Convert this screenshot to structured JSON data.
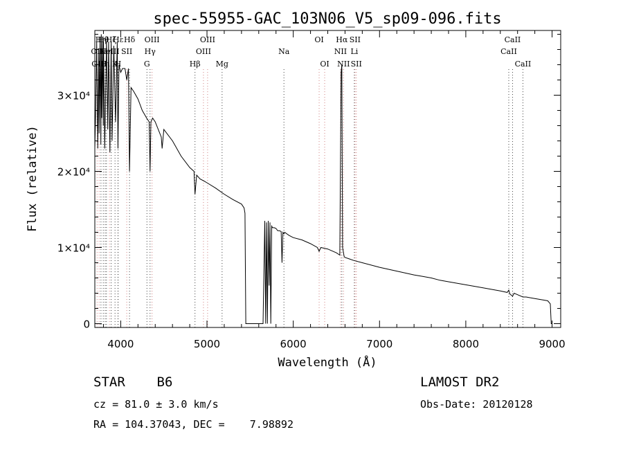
{
  "chart_data": {
    "type": "line",
    "title": "spec-55955-GAC_103N06_V5_sp09-096.fits",
    "xlabel": "Wavelength (Å)",
    "ylabel": "Flux (relative)",
    "xlim": [
      3700,
      9100
    ],
    "ylim": [
      -500,
      38500
    ],
    "x_ticks": [
      4000,
      5000,
      6000,
      7000,
      8000,
      9000
    ],
    "y_ticks": [
      {
        "value": 0,
        "label": "0"
      },
      {
        "value": 10000,
        "label": "1×10⁴"
      },
      {
        "value": 20000,
        "label": "2×10⁴"
      },
      {
        "value": 30000,
        "label": "3×10⁴"
      }
    ],
    "series": [
      {
        "x": [
          3700,
          3710,
          3722,
          3734,
          3746,
          3750,
          3760,
          3770,
          3775,
          3780,
          3790,
          3798,
          3800,
          3815,
          3835,
          3850,
          3860,
          3875,
          3889,
          3900,
          3920,
          3940,
          3960,
          3968,
          3980,
          3990,
          4000,
          4020,
          4050,
          4070,
          4090,
          4102,
          4120,
          4150,
          4200,
          4250,
          4300,
          4330,
          4340,
          4350,
          4370,
          4400,
          4470,
          4480,
          4500,
          4600,
          4700,
          4800,
          4850,
          4861,
          4880,
          4920,
          4970,
          5000,
          5100,
          5200,
          5300,
          5400,
          5430,
          5440,
          5450,
          5460,
          5650,
          5670,
          5680,
          5690,
          5700,
          5710,
          5720,
          5730,
          5740,
          5750,
          5760,
          5780,
          5800,
          5820,
          5840,
          5860,
          5870,
          5880,
          5892,
          5900,
          5950,
          6000,
          6100,
          6200,
          6280,
          6300,
          6320,
          6400,
          6500,
          6540,
          6555,
          6563,
          6572,
          6590,
          6600,
          6650,
          6700,
          6800,
          7000,
          7200,
          7400,
          7500,
          7600,
          7700,
          7800,
          8000,
          8200,
          8400,
          8480,
          8498,
          8510,
          8542,
          8560,
          8600,
          8662,
          8700,
          8800,
          8900,
          8950,
          8980,
          8990,
          9000
        ],
        "y": [
          23000,
          28000,
          37000,
          23000,
          36000,
          25000,
          37000,
          23500,
          38000,
          27000,
          37000,
          26000,
          37000,
          23000,
          37000,
          25500,
          37000,
          22500,
          37000,
          24000,
          36500,
          26500,
          37000,
          23000,
          34000,
          33500,
          33000,
          33500,
          33500,
          32000,
          33500,
          20000,
          31000,
          30500,
          29500,
          28000,
          27000,
          26500,
          20000,
          26500,
          27000,
          26500,
          24500,
          23000,
          25500,
          24000,
          22000,
          20500,
          20000,
          17000,
          19500,
          19000,
          18700,
          18500,
          17800,
          17000,
          16300,
          15700,
          15200,
          14500,
          0,
          0,
          0,
          13500,
          0,
          13300,
          0,
          13500,
          5000,
          13300,
          0,
          12800,
          12600,
          12600,
          12500,
          12200,
          12200,
          12100,
          8000,
          12000,
          11800,
          12000,
          11600,
          11300,
          11000,
          10500,
          10000,
          9500,
          10000,
          9800,
          9300,
          9000,
          33000,
          34000,
          10000,
          8800,
          8700,
          8500,
          8300,
          8000,
          7400,
          6900,
          6400,
          6200,
          6000,
          5700,
          5500,
          5100,
          4700,
          4300,
          4100,
          4400,
          3900,
          3600,
          4000,
          3800,
          3500,
          3500,
          3300,
          3100,
          3000,
          2600,
          0,
          0
        ]
      }
    ],
    "lines": [
      {
        "x": 3726,
        "label": "OII",
        "row": 1,
        "color": "#d08080"
      },
      {
        "x": 3750,
        "label": "OIII",
        "row": 2,
        "color": "#d08080"
      },
      {
        "x": 3771,
        "label": "Hη",
        "row": 0,
        "color": "#404040"
      },
      {
        "x": 3798,
        "label": "Hθ",
        "row": 0,
        "color": "#404040"
      },
      {
        "x": 3820,
        "label": "Hι",
        "row": 2,
        "color": "#404040"
      },
      {
        "x": 3835,
        "label": "Hη",
        "row": 1,
        "color": "#404040"
      },
      {
        "x": 3869,
        "label": "NeIII",
        "row": 1,
        "color": "#d08080"
      },
      {
        "x": 3889,
        "label": "Hζ",
        "row": 0,
        "color": "#404040"
      },
      {
        "x": 3934,
        "label": "K",
        "row": 2,
        "color": "#404040"
      },
      {
        "x": 3968,
        "label": "H",
        "row": 2,
        "color": "#404040"
      },
      {
        "x": 3970,
        "label": "Hε",
        "row": 0,
        "color": "#404040"
      },
      {
        "x": 4070,
        "label": "SII",
        "row": 1,
        "color": "#d08080"
      },
      {
        "x": 4102,
        "label": "Hδ",
        "row": 0,
        "color": "#404040"
      },
      {
        "x": 4304,
        "label": "G",
        "row": 2,
        "color": "#404040"
      },
      {
        "x": 4340,
        "label": "Hγ",
        "row": 1,
        "color": "#404040"
      },
      {
        "x": 4363,
        "label": "OIII",
        "row": 0,
        "color": "#d08080"
      },
      {
        "x": 4861,
        "label": "Hβ",
        "row": 2,
        "color": "#404040"
      },
      {
        "x": 4959,
        "label": "OIII",
        "row": 1,
        "color": "#d08080"
      },
      {
        "x": 5007,
        "label": "OIII",
        "row": 0,
        "color": "#d08080"
      },
      {
        "x": 5175,
        "label": "Mg",
        "row": 2,
        "color": "#404040"
      },
      {
        "x": 5892,
        "label": "Na",
        "row": 1,
        "color": "#404040"
      },
      {
        "x": 6300,
        "label": "OI",
        "row": 0,
        "color": "#d08080"
      },
      {
        "x": 6364,
        "label": "OI",
        "row": 2,
        "color": "#d08080"
      },
      {
        "x": 6548,
        "label": "NII",
        "row": 1,
        "color": "#d08080"
      },
      {
        "x": 6563,
        "label": "Hα",
        "row": 0,
        "color": "#404040"
      },
      {
        "x": 6583,
        "label": "NII",
        "row": 2,
        "color": "#d08080"
      },
      {
        "x": 6708,
        "label": "Li",
        "row": 1,
        "color": "#404040"
      },
      {
        "x": 6716,
        "label": "SII",
        "row": 0,
        "color": "#d08080"
      },
      {
        "x": 6731,
        "label": "SII",
        "row": 2,
        "color": "#d08080"
      },
      {
        "x": 8498,
        "label": "CaII",
        "row": 1,
        "color": "#404040"
      },
      {
        "x": 8542,
        "label": "CaII",
        "row": 0,
        "color": "#404040"
      },
      {
        "x": 8662,
        "label": "CaII",
        "row": 2,
        "color": "#404040"
      }
    ]
  },
  "info": {
    "object_class": "STAR    B6",
    "cz": "cz = 81.0 ± 3.0 km/s",
    "coords": "RA = 104.37043, DEC =    7.98892",
    "survey": "LAMOST DR2",
    "obs_date": "Obs-Date: 20120128"
  }
}
